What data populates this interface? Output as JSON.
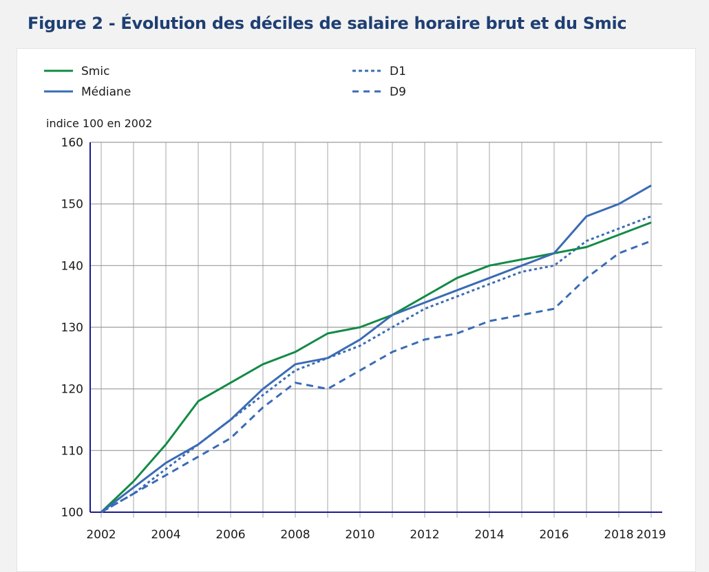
{
  "title": "Figure 2 - Évolution des déciles de salaire horaire brut et du Smic",
  "chart_data": {
    "type": "line",
    "title": "Figure 2 - Évolution des déciles de salaire horaire brut et du Smic",
    "ylabel": "indice 100 en 2002",
    "xlabel": "",
    "x": [
      2002,
      2003,
      2004,
      2005,
      2006,
      2007,
      2008,
      2009,
      2010,
      2011,
      2012,
      2013,
      2014,
      2015,
      2016,
      2017,
      2018,
      2019
    ],
    "xticks": [
      "2002",
      "2004",
      "2006",
      "2008",
      "2010",
      "2012",
      "2014",
      "2016",
      "2018",
      "2019"
    ],
    "ylim": [
      100,
      160
    ],
    "yticks": [
      "100",
      "110",
      "120",
      "130",
      "140",
      "150",
      "160"
    ],
    "grid": true,
    "legend_position": "top",
    "series": [
      {
        "name": "Smic",
        "color": "#138a45",
        "style": "solid",
        "values": [
          100,
          105,
          111,
          118,
          121,
          124,
          126,
          129,
          130,
          132,
          135,
          138,
          140,
          141,
          142,
          143,
          145,
          147
        ]
      },
      {
        "name": "Médiane",
        "color": "#3a6bb5",
        "style": "solid",
        "values": [
          100,
          104,
          108,
          111,
          115,
          120,
          124,
          125,
          128,
          132,
          134,
          136,
          138,
          140,
          142,
          148,
          150,
          153
        ]
      },
      {
        "name": "D1",
        "color": "#3a6bb5",
        "style": "dotted",
        "values": [
          100,
          103,
          107,
          111,
          115,
          119,
          123,
          125,
          127,
          130,
          133,
          135,
          137,
          139,
          140,
          144,
          146,
          148
        ]
      },
      {
        "name": "D9",
        "color": "#3a6bb5",
        "style": "dashed",
        "values": [
          100,
          103,
          106,
          109,
          112,
          117,
          121,
          120,
          123,
          126,
          128,
          129,
          131,
          132,
          133,
          138,
          142,
          144
        ]
      }
    ]
  }
}
